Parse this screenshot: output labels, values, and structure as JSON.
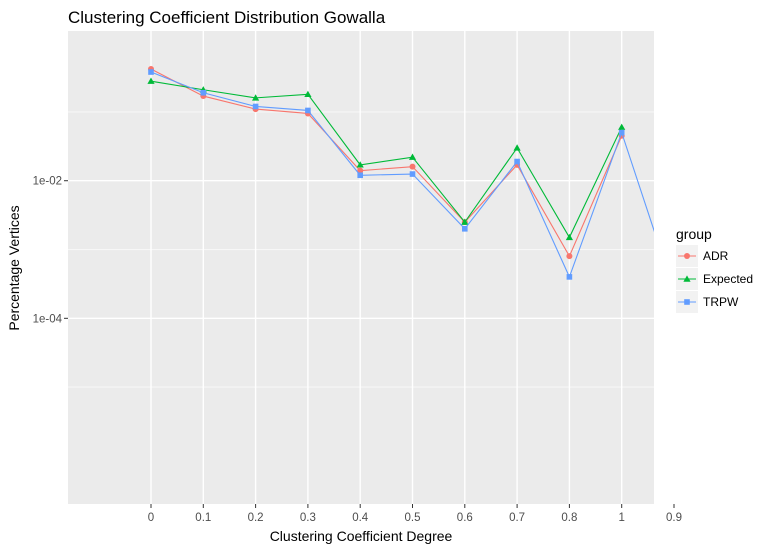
{
  "chart_data": {
    "type": "line",
    "title": "Clustering Coefficient Distribution Gowalla",
    "xlabel": "Clustering Coefficient Degree",
    "ylabel": "Percentage Vertices",
    "x_ticks": [
      "0",
      "0.1",
      "0.2",
      "0.3",
      "0.4",
      "0.5",
      "0.6",
      "0.7",
      "0.8",
      "1",
      "0.9"
    ],
    "y_scale": "log10",
    "ylim": [
      2e-07,
      1.5
    ],
    "y_ticks": [
      {
        "value": 0.01,
        "label": "1e-02"
      },
      {
        "value": 0.0001,
        "label": "1e-04"
      }
    ],
    "grid": true,
    "legend": {
      "title": "group",
      "position": "right"
    },
    "series": [
      {
        "name": "ADR",
        "color": "#F8766D",
        "marker": "circle",
        "values": [
          0.42,
          0.17,
          0.11,
          0.095,
          0.014,
          0.016,
          0.0025,
          0.017,
          0.0008,
          0.045,
          null
        ]
      },
      {
        "name": "Expected",
        "color": "#00BA38",
        "marker": "triangle",
        "values": [
          0.28,
          0.21,
          0.16,
          0.18,
          0.017,
          0.022,
          0.0025,
          0.03,
          0.0015,
          0.06,
          null
        ]
      },
      {
        "name": "TRPW",
        "color": "#619CFF",
        "marker": "square",
        "values": [
          0.38,
          0.19,
          0.12,
          0.105,
          0.012,
          0.0125,
          0.002,
          0.019,
          0.0004,
          0.05,
          0.00025
        ]
      }
    ]
  }
}
